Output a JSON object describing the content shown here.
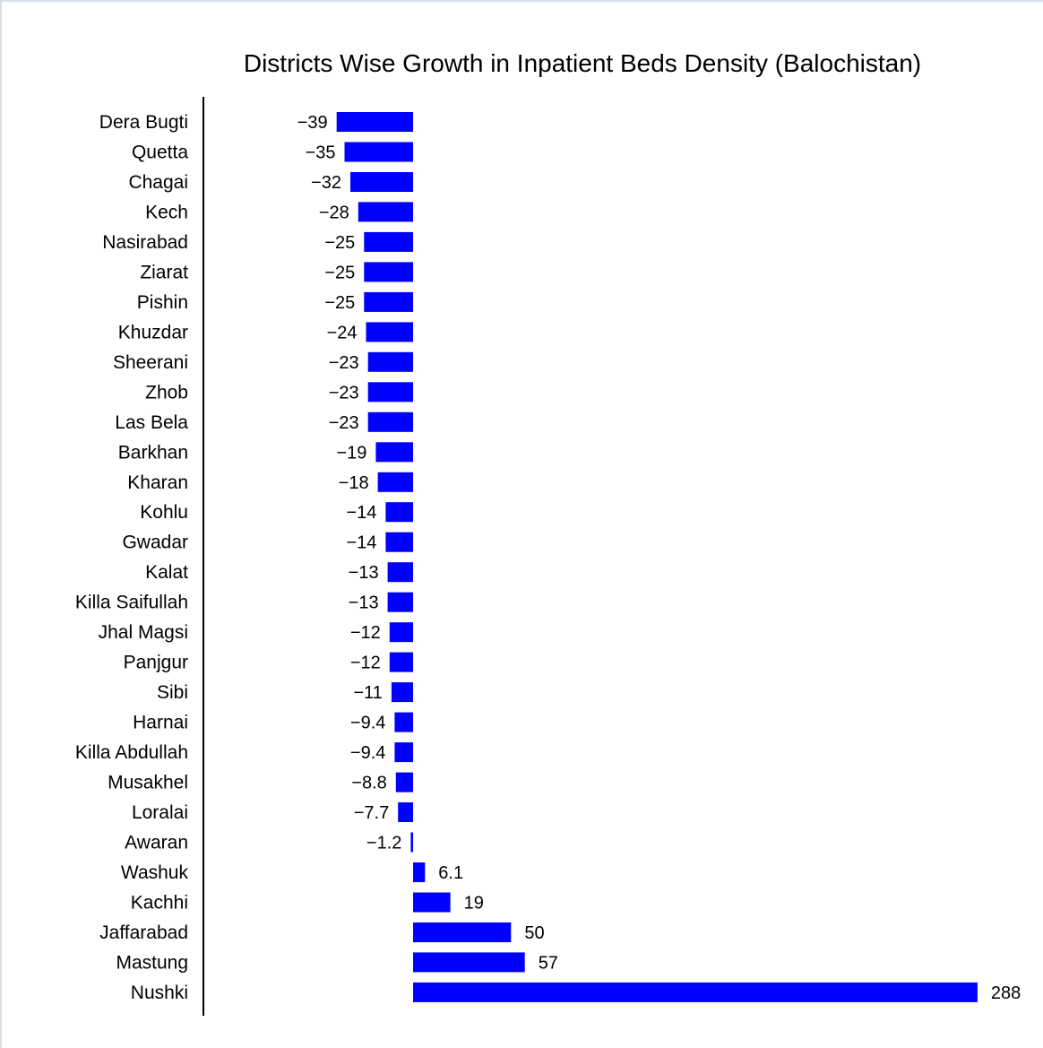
{
  "chart_data": {
    "type": "bar",
    "orientation": "horizontal",
    "title": "Districts Wise Growth in Inpatient Beds Density (Balochistan)",
    "xlabel": "",
    "ylabel": "",
    "bar_color": "#0000ff",
    "categories": [
      "Dera Bugti",
      "Quetta",
      "Chagai",
      "Kech",
      "Nasirabad",
      "Ziarat",
      "Pishin",
      "Khuzdar",
      "Sheerani",
      "Zhob",
      "Las Bela",
      "Barkhan",
      "Kharan",
      "Kohlu",
      "Gwadar",
      "Kalat",
      "Killa Saifullah",
      "Jhal Magsi",
      "Panjgur",
      "Sibi",
      "Harnai",
      "Killa Abdullah",
      "Musakhel",
      "Loralai",
      "Awaran",
      "Washuk",
      "Kachhi",
      "Jaffarabad",
      "Mastung",
      "Nushki"
    ],
    "values": [
      -39,
      -35,
      -32,
      -28,
      -25,
      -25,
      -25,
      -24,
      -23,
      -23,
      -23,
      -19,
      -18,
      -14,
      -14,
      -13,
      -13,
      -12,
      -12,
      -11,
      -9.4,
      -9.4,
      -8.8,
      -7.7,
      -1.2,
      6.1,
      19,
      50,
      57,
      288
    ],
    "value_labels": [
      "−39",
      "−35",
      "−32",
      "−28",
      "−25",
      "−25",
      "−25",
      "−24",
      "−23",
      "−23",
      "−23",
      "−19",
      "−18",
      "−14",
      "−14",
      "−13",
      "−13",
      "−12",
      "−12",
      "−11",
      "−9.4",
      "−9.4",
      "−8.8",
      "−7.7",
      "−1.2",
      "6.1",
      "19",
      "50",
      "57",
      "288"
    ],
    "grid": false,
    "legend": "none"
  }
}
